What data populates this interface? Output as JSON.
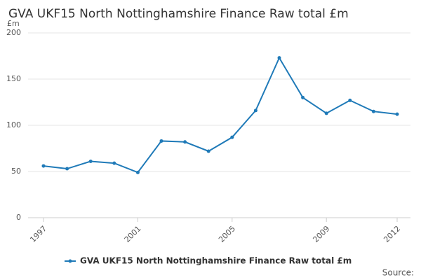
{
  "chart_data": {
    "type": "line",
    "title": "GVA UKF15 North Nottinghamshire Finance Raw total £m",
    "y_unit": "£m",
    "source": "Source:",
    "x": [
      1997,
      1998,
      1999,
      2000,
      2001,
      2002,
      2003,
      2004,
      2005,
      2006,
      2007,
      2008,
      2009,
      2010,
      2011,
      2012
    ],
    "series": [
      {
        "name": "GVA UKF15 North Nottinghamshire Finance Raw total £m",
        "color": "#1f7ab8",
        "values": [
          56,
          53,
          61,
          59,
          49,
          83,
          82,
          72,
          87,
          116,
          173,
          130,
          113,
          127,
          115,
          112
        ]
      }
    ],
    "xlim": [
      1997,
      2012
    ],
    "xticks": [
      1997,
      2001,
      2005,
      2009,
      2012
    ],
    "ylim": [
      0,
      200
    ],
    "yticks": [
      0,
      50,
      100,
      150,
      200
    ],
    "grid": true,
    "legend": "bottom"
  }
}
